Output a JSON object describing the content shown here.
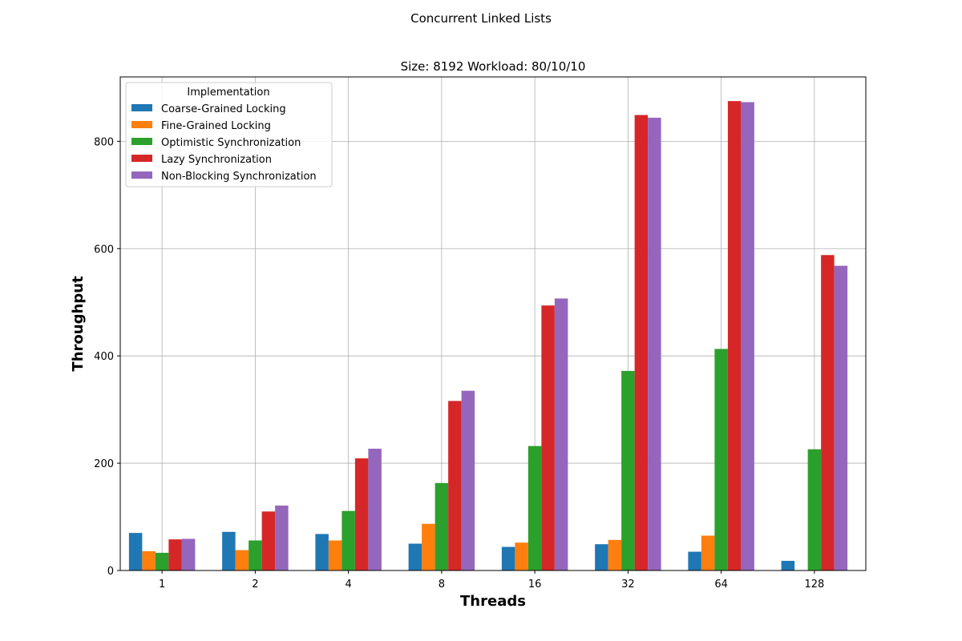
{
  "chart_data": {
    "type": "bar",
    "suptitle": "Concurrent Linked Lists",
    "title": "Size: 8192 Workload: 80/10/10",
    "xlabel": "Threads",
    "ylabel": "Throughput",
    "categories": [
      "1",
      "2",
      "4",
      "8",
      "16",
      "32",
      "64",
      "128"
    ],
    "ylim": [
      0,
      920
    ],
    "yticks": [
      0,
      200,
      400,
      600,
      800
    ],
    "grid": true,
    "legend": {
      "title": "Implementation",
      "placement": "top-left"
    },
    "series": [
      {
        "name": "Coarse-Grained Locking",
        "color": "#1f77b4",
        "values": [
          70,
          72,
          68,
          50,
          44,
          49,
          35,
          18
        ]
      },
      {
        "name": "Fine-Grained Locking",
        "color": "#ff7f0e",
        "values": [
          36,
          38,
          56,
          87,
          52,
          57,
          65,
          0
        ]
      },
      {
        "name": "Optimistic Synchronization",
        "color": "#2ca02c",
        "values": [
          33,
          56,
          111,
          163,
          232,
          372,
          413,
          226
        ]
      },
      {
        "name": "Lazy Synchronization",
        "color": "#d62728",
        "values": [
          58,
          110,
          209,
          316,
          494,
          849,
          875,
          588
        ]
      },
      {
        "name": "Non-Blocking Synchronization",
        "color": "#9467bd",
        "values": [
          59,
          121,
          227,
          335,
          507,
          844,
          873,
          568
        ]
      }
    ]
  }
}
